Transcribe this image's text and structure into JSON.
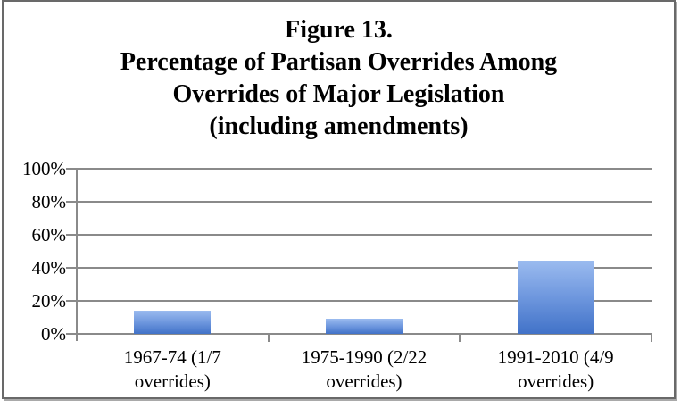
{
  "figure": {
    "title_lines": [
      "Figure 13.",
      "Percentage of Partisan Overrides Among",
      "Overrides of Major Legislation",
      "(including amendments)"
    ]
  },
  "chart_data": {
    "type": "bar",
    "title": "Figure 13. Percentage of Partisan Overrides Among Overrides of Major Legislation (including amendments)",
    "categories": [
      "1967-74 (1/7\noverrides)",
      "1975-1990 (2/22\noverrides)",
      "1991-2010 (4/9\noverrides)"
    ],
    "values": [
      14.3,
      9.1,
      44.4
    ],
    "fractions_shown": [
      "1/7",
      "2/22",
      "4/9"
    ],
    "ylim": [
      0,
      100
    ],
    "y_tick_values": [
      0,
      20,
      40,
      60,
      80,
      100
    ],
    "y_tick_labels": [
      "0%",
      "20%",
      "40%",
      "60%",
      "80%",
      "100%"
    ],
    "grid": true,
    "legend": "none",
    "colors": {
      "bar_gradient_top": "#9BBBEF",
      "bar_gradient_mid": "#6E97DE",
      "bar_gradient_bottom": "#4172C8",
      "grid_color": "#8a8a8a",
      "axis_color": "#8a8a8a",
      "frame_border": "#696969",
      "text": "#000000"
    }
  }
}
